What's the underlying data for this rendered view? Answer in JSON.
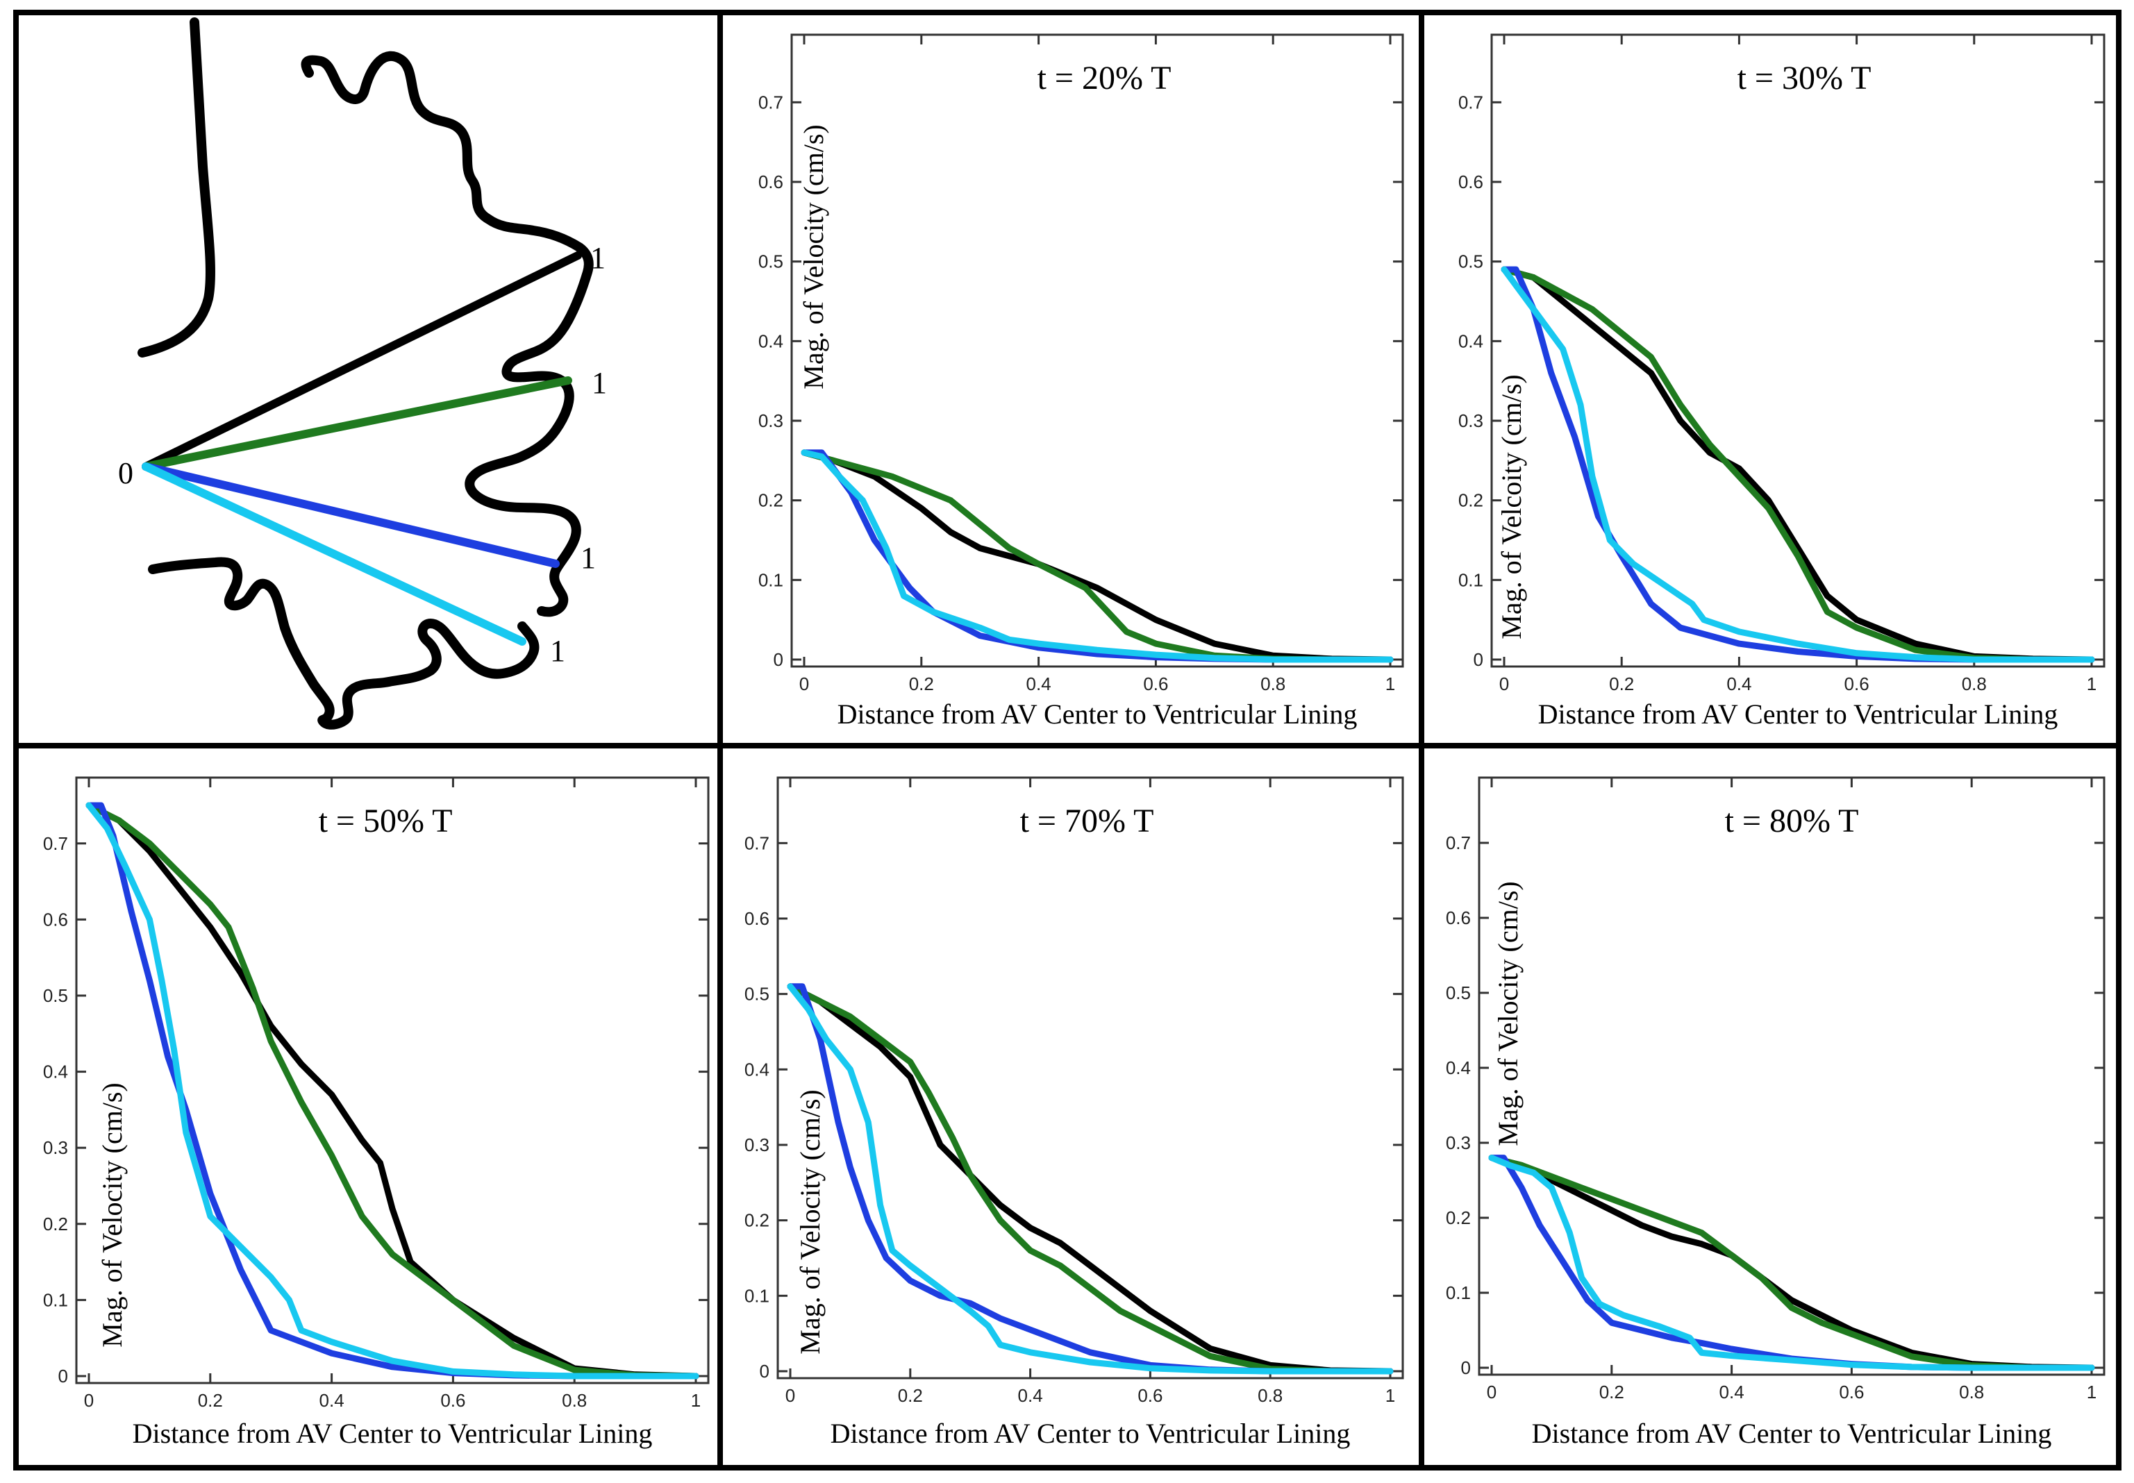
{
  "figure": {
    "colors": {
      "frame": "#000000",
      "axes": "#333333",
      "line_1": "#000000",
      "line_2": "#1f7a1f",
      "line_3": "#1e3ee0",
      "line_4": "#18c8f0"
    }
  },
  "diagram": {
    "origin_label": "0",
    "end_labels": [
      "1",
      "1",
      "1",
      "1"
    ]
  },
  "chart_data": [
    {
      "type": "line",
      "title": "t = 20% T",
      "xlabel": "Distance from AV Center to Ventricular Lining",
      "ylabel": "Mag. of Velocity (cm/s)",
      "xlim": [
        0,
        1
      ],
      "ylim": [
        0,
        0.75
      ],
      "xticks": [
        0,
        0.2,
        0.4,
        0.6,
        0.8,
        1
      ],
      "xtick_labels": [
        "0",
        "0.2",
        "0.4",
        "0.6",
        "0.8",
        "1"
      ],
      "yticks": [
        0,
        0.1,
        0.2,
        0.3,
        0.4,
        0.5,
        0.6,
        0.7
      ],
      "ytick_labels": [
        "0",
        "0.1",
        "0.2",
        "0.3",
        "0.4",
        "0.5",
        "0.6",
        "0.7"
      ],
      "grid": false,
      "series": [
        {
          "name": "black",
          "x": [
            0,
            0.05,
            0.12,
            0.2,
            0.25,
            0.3,
            0.4,
            0.5,
            0.6,
            0.7,
            0.8,
            0.9,
            1.0
          ],
          "values": [
            0.26,
            0.25,
            0.23,
            0.19,
            0.16,
            0.14,
            0.12,
            0.09,
            0.05,
            0.02,
            0.005,
            0.001,
            0
          ]
        },
        {
          "name": "green",
          "x": [
            0,
            0.05,
            0.15,
            0.25,
            0.3,
            0.35,
            0.4,
            0.48,
            0.55,
            0.6,
            0.7,
            0.8,
            0.9,
            1.0
          ],
          "values": [
            0.26,
            0.25,
            0.23,
            0.2,
            0.17,
            0.14,
            0.12,
            0.09,
            0.035,
            0.02,
            0.005,
            0.001,
            0,
            0
          ]
        },
        {
          "name": "blue",
          "x": [
            0,
            0.03,
            0.08,
            0.12,
            0.18,
            0.22,
            0.3,
            0.4,
            0.5,
            0.6,
            0.7,
            0.8,
            1.0
          ],
          "values": [
            0.26,
            0.26,
            0.21,
            0.15,
            0.09,
            0.06,
            0.03,
            0.015,
            0.007,
            0.003,
            0.001,
            0,
            0
          ]
        },
        {
          "name": "cyan",
          "x": [
            0,
            0.03,
            0.06,
            0.1,
            0.14,
            0.17,
            0.22,
            0.3,
            0.35,
            0.4,
            0.5,
            0.6,
            0.7,
            0.8,
            1.0
          ],
          "values": [
            0.26,
            0.255,
            0.23,
            0.2,
            0.14,
            0.08,
            0.06,
            0.04,
            0.025,
            0.02,
            0.012,
            0.006,
            0.002,
            0,
            0
          ]
        }
      ]
    },
    {
      "type": "line",
      "title": "t = 30% T",
      "xlabel": "Distance from AV Center to Ventricular Lining",
      "ylabel": "Mag. of Velcoity (cm/s)",
      "xlim": [
        0,
        1
      ],
      "ylim": [
        0,
        0.75
      ],
      "xticks": [
        0,
        0.2,
        0.4,
        0.6,
        0.8,
        1
      ],
      "xtick_labels": [
        "0",
        "0.2",
        "0.4",
        "0.6",
        "0.8",
        "1"
      ],
      "yticks": [
        0,
        0.1,
        0.2,
        0.3,
        0.4,
        0.5,
        0.6,
        0.7
      ],
      "ytick_labels": [
        "0",
        "0.1",
        "0.2",
        "0.3",
        "0.4",
        "0.5",
        "0.6",
        "0.7"
      ],
      "grid": false,
      "series": [
        {
          "name": "black",
          "x": [
            0,
            0.05,
            0.1,
            0.15,
            0.2,
            0.25,
            0.3,
            0.35,
            0.4,
            0.45,
            0.5,
            0.55,
            0.6,
            0.7,
            0.8,
            0.9,
            1.0
          ],
          "values": [
            0.49,
            0.48,
            0.45,
            0.42,
            0.39,
            0.36,
            0.3,
            0.26,
            0.24,
            0.2,
            0.14,
            0.08,
            0.05,
            0.02,
            0.004,
            0.001,
            0
          ]
        },
        {
          "name": "green",
          "x": [
            0,
            0.05,
            0.1,
            0.15,
            0.2,
            0.25,
            0.3,
            0.35,
            0.4,
            0.45,
            0.5,
            0.55,
            0.6,
            0.7,
            0.8,
            0.9,
            1.0
          ],
          "values": [
            0.49,
            0.48,
            0.46,
            0.44,
            0.41,
            0.38,
            0.32,
            0.27,
            0.23,
            0.19,
            0.13,
            0.06,
            0.04,
            0.012,
            0.002,
            0,
            0
          ]
        },
        {
          "name": "blue",
          "x": [
            0,
            0.02,
            0.05,
            0.08,
            0.12,
            0.16,
            0.2,
            0.25,
            0.3,
            0.35,
            0.4,
            0.5,
            0.6,
            0.7,
            0.8,
            1.0
          ],
          "values": [
            0.49,
            0.49,
            0.44,
            0.36,
            0.28,
            0.18,
            0.13,
            0.07,
            0.04,
            0.03,
            0.02,
            0.01,
            0.004,
            0.001,
            0,
            0
          ]
        },
        {
          "name": "cyan",
          "x": [
            0,
            0.03,
            0.06,
            0.1,
            0.13,
            0.15,
            0.18,
            0.22,
            0.28,
            0.32,
            0.34,
            0.4,
            0.5,
            0.6,
            0.7,
            0.8,
            1.0
          ],
          "values": [
            0.49,
            0.46,
            0.43,
            0.39,
            0.32,
            0.23,
            0.15,
            0.12,
            0.09,
            0.07,
            0.05,
            0.035,
            0.02,
            0.008,
            0.003,
            0,
            0
          ]
        }
      ]
    },
    {
      "type": "line",
      "title": "t = 50% T",
      "xlabel": "Distance from AV Center to Ventricular Lining",
      "ylabel": "Mag. of Velocity (cm/s)",
      "xlim": [
        0,
        1
      ],
      "ylim": [
        0,
        0.75
      ],
      "xticks": [
        0,
        0.2,
        0.4,
        0.6,
        0.8,
        1
      ],
      "xtick_labels": [
        "0",
        "0.2",
        "0.4",
        "0.6",
        "0.8",
        "1"
      ],
      "yticks": [
        0,
        0.1,
        0.2,
        0.3,
        0.4,
        0.5,
        0.6,
        0.7
      ],
      "ytick_labels": [
        "0",
        "0.1",
        "0.2",
        "0.3",
        "0.4",
        "0.5",
        "0.6",
        "0.7"
      ],
      "grid": false,
      "series": [
        {
          "name": "black",
          "x": [
            0,
            0.05,
            0.1,
            0.15,
            0.2,
            0.25,
            0.3,
            0.35,
            0.4,
            0.45,
            0.48,
            0.5,
            0.53,
            0.6,
            0.7,
            0.8,
            0.9,
            1.0
          ],
          "values": [
            0.75,
            0.73,
            0.69,
            0.64,
            0.59,
            0.53,
            0.46,
            0.41,
            0.37,
            0.31,
            0.28,
            0.22,
            0.15,
            0.1,
            0.05,
            0.01,
            0.002,
            0
          ]
        },
        {
          "name": "green",
          "x": [
            0,
            0.05,
            0.1,
            0.15,
            0.2,
            0.23,
            0.27,
            0.3,
            0.35,
            0.4,
            0.45,
            0.5,
            0.55,
            0.6,
            0.7,
            0.8,
            0.9,
            1.0
          ],
          "values": [
            0.75,
            0.73,
            0.7,
            0.66,
            0.62,
            0.59,
            0.51,
            0.44,
            0.36,
            0.29,
            0.21,
            0.16,
            0.13,
            0.1,
            0.04,
            0.008,
            0.001,
            0
          ]
        },
        {
          "name": "blue",
          "x": [
            0,
            0.02,
            0.04,
            0.07,
            0.1,
            0.13,
            0.16,
            0.2,
            0.25,
            0.3,
            0.35,
            0.4,
            0.5,
            0.6,
            0.7,
            0.8,
            1.0
          ],
          "values": [
            0.75,
            0.75,
            0.71,
            0.61,
            0.52,
            0.42,
            0.35,
            0.24,
            0.14,
            0.06,
            0.045,
            0.03,
            0.012,
            0.004,
            0.001,
            0,
            0
          ]
        },
        {
          "name": "cyan",
          "x": [
            0,
            0.03,
            0.06,
            0.1,
            0.12,
            0.14,
            0.16,
            0.2,
            0.25,
            0.3,
            0.33,
            0.35,
            0.4,
            0.5,
            0.6,
            0.7,
            0.8,
            1.0
          ],
          "values": [
            0.75,
            0.72,
            0.67,
            0.6,
            0.52,
            0.43,
            0.32,
            0.21,
            0.17,
            0.13,
            0.1,
            0.06,
            0.045,
            0.02,
            0.006,
            0.002,
            0,
            0
          ]
        }
      ]
    },
    {
      "type": "line",
      "title": "t = 70% T",
      "xlabel": "Distance from AV Center to Ventricular Lining",
      "ylabel": "Mag. of Velocity (cm/s)",
      "xlim": [
        0,
        1
      ],
      "ylim": [
        0,
        0.75
      ],
      "xticks": [
        0,
        0.2,
        0.4,
        0.6,
        0.8,
        1
      ],
      "xtick_labels": [
        "0",
        "0.2",
        "0.4",
        "0.6",
        "0.8",
        "1"
      ],
      "yticks": [
        0,
        0.1,
        0.2,
        0.3,
        0.4,
        0.5,
        0.6,
        0.7
      ],
      "ytick_labels": [
        "0",
        "0.1",
        "0.2",
        "0.3",
        "0.4",
        "0.5",
        "0.6",
        "0.7"
      ],
      "grid": false,
      "series": [
        {
          "name": "black",
          "x": [
            0,
            0.05,
            0.1,
            0.15,
            0.2,
            0.25,
            0.3,
            0.35,
            0.4,
            0.45,
            0.5,
            0.55,
            0.6,
            0.7,
            0.8,
            0.9,
            1.0
          ],
          "values": [
            0.51,
            0.49,
            0.46,
            0.43,
            0.39,
            0.3,
            0.26,
            0.22,
            0.19,
            0.17,
            0.14,
            0.11,
            0.08,
            0.03,
            0.008,
            0.001,
            0
          ]
        },
        {
          "name": "green",
          "x": [
            0,
            0.05,
            0.1,
            0.15,
            0.2,
            0.23,
            0.27,
            0.3,
            0.35,
            0.4,
            0.45,
            0.5,
            0.55,
            0.6,
            0.7,
            0.8,
            0.9,
            1.0
          ],
          "values": [
            0.51,
            0.49,
            0.47,
            0.44,
            0.41,
            0.37,
            0.31,
            0.26,
            0.2,
            0.16,
            0.14,
            0.11,
            0.08,
            0.06,
            0.02,
            0.003,
            0,
            0
          ]
        },
        {
          "name": "blue",
          "x": [
            0,
            0.02,
            0.05,
            0.08,
            0.1,
            0.13,
            0.16,
            0.2,
            0.25,
            0.3,
            0.35,
            0.4,
            0.5,
            0.6,
            0.7,
            0.8,
            1.0
          ],
          "values": [
            0.51,
            0.51,
            0.44,
            0.33,
            0.27,
            0.2,
            0.15,
            0.12,
            0.1,
            0.09,
            0.07,
            0.055,
            0.025,
            0.008,
            0.002,
            0,
            0
          ]
        },
        {
          "name": "cyan",
          "x": [
            0,
            0.03,
            0.06,
            0.1,
            0.13,
            0.15,
            0.17,
            0.2,
            0.25,
            0.3,
            0.33,
            0.35,
            0.4,
            0.5,
            0.6,
            0.7,
            0.8,
            1.0
          ],
          "values": [
            0.51,
            0.48,
            0.44,
            0.4,
            0.33,
            0.22,
            0.16,
            0.14,
            0.11,
            0.08,
            0.06,
            0.035,
            0.025,
            0.012,
            0.004,
            0.001,
            0,
            0
          ]
        }
      ]
    },
    {
      "type": "line",
      "title": "t = 80% T",
      "xlabel": "Distance from AV Center to Ventricular Lining",
      "ylabel": "Mag. of Velocity (cm/s)",
      "xlim": [
        0,
        1
      ],
      "ylim": [
        0,
        0.75
      ],
      "xticks": [
        0,
        0.2,
        0.4,
        0.6,
        0.8,
        1
      ],
      "xtick_labels": [
        "0",
        "0.2",
        "0.4",
        "0.6",
        "0.8",
        "1"
      ],
      "yticks": [
        0,
        0.1,
        0.2,
        0.3,
        0.4,
        0.5,
        0.6,
        0.7
      ],
      "ytick_labels": [
        "0",
        "0.1",
        "0.2",
        "0.3",
        "0.4",
        "0.5",
        "0.6",
        "0.7"
      ],
      "grid": false,
      "series": [
        {
          "name": "black",
          "x": [
            0,
            0.05,
            0.1,
            0.15,
            0.2,
            0.25,
            0.3,
            0.35,
            0.4,
            0.45,
            0.5,
            0.55,
            0.6,
            0.7,
            0.8,
            0.9,
            1.0
          ],
          "values": [
            0.28,
            0.27,
            0.25,
            0.23,
            0.21,
            0.19,
            0.175,
            0.165,
            0.15,
            0.12,
            0.09,
            0.07,
            0.05,
            0.02,
            0.005,
            0.001,
            0
          ]
        },
        {
          "name": "green",
          "x": [
            0,
            0.05,
            0.1,
            0.15,
            0.2,
            0.25,
            0.3,
            0.35,
            0.4,
            0.45,
            0.5,
            0.55,
            0.6,
            0.7,
            0.8,
            0.9,
            1.0
          ],
          "values": [
            0.28,
            0.27,
            0.255,
            0.24,
            0.225,
            0.21,
            0.195,
            0.18,
            0.15,
            0.12,
            0.08,
            0.06,
            0.045,
            0.015,
            0.003,
            0,
            0
          ]
        },
        {
          "name": "blue",
          "x": [
            0,
            0.02,
            0.05,
            0.08,
            0.12,
            0.16,
            0.2,
            0.25,
            0.3,
            0.35,
            0.4,
            0.5,
            0.6,
            0.7,
            0.8,
            1.0
          ],
          "values": [
            0.28,
            0.28,
            0.24,
            0.19,
            0.14,
            0.09,
            0.06,
            0.05,
            0.04,
            0.033,
            0.025,
            0.012,
            0.005,
            0.001,
            0,
            0
          ]
        },
        {
          "name": "cyan",
          "x": [
            0,
            0.03,
            0.07,
            0.1,
            0.13,
            0.15,
            0.18,
            0.22,
            0.28,
            0.33,
            0.35,
            0.4,
            0.5,
            0.6,
            0.7,
            0.8,
            1.0
          ],
          "values": [
            0.28,
            0.27,
            0.26,
            0.24,
            0.18,
            0.12,
            0.085,
            0.07,
            0.055,
            0.04,
            0.02,
            0.016,
            0.01,
            0.004,
            0.001,
            0,
            0
          ]
        }
      ]
    }
  ]
}
